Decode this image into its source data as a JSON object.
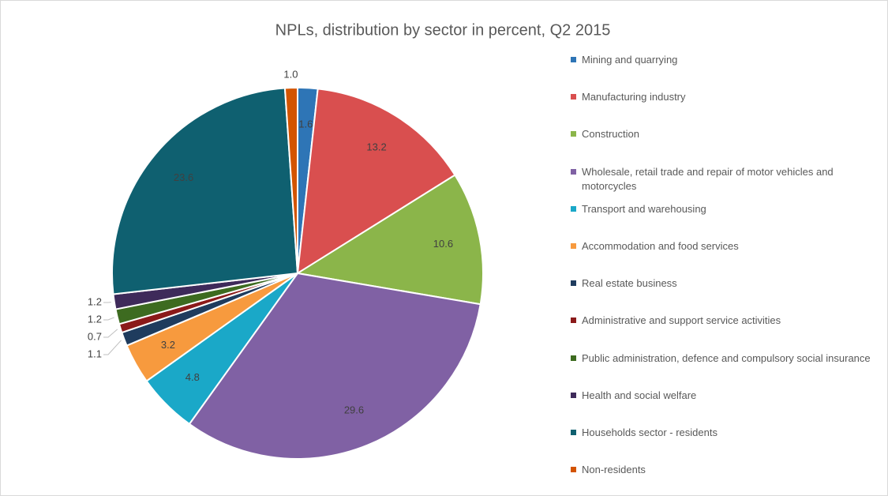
{
  "chart_data": {
    "type": "pie",
    "title": "NPLs, distribution by sector in percent, Q2 2015",
    "categories": [
      "Mining and quarrying",
      "Manufacturing industry",
      "Construction",
      "Wholesale, retail trade and repair of motor vehicles and motorcycles",
      "Transport and warehousing",
      "Accommodation and food services",
      "Real estate business",
      "Administrative and support service activities",
      "Public administration, defence and compulsory social insurance",
      "Health and social welfare",
      "Households sector - residents",
      "Non-residents"
    ],
    "values": [
      1.6,
      13.2,
      10.6,
      29.6,
      4.8,
      3.2,
      1.1,
      0.7,
      1.2,
      1.2,
      23.6,
      1.0
    ],
    "value_labels": [
      "1.6",
      "13.2",
      "10.6",
      "29.6",
      "4.8",
      "3.2",
      "1.1",
      "0.7",
      "1.2",
      "1.2",
      "23.6",
      "1.0"
    ],
    "colors": [
      "#2e75b6",
      "#d94f4f",
      "#8bb54a",
      "#8061a4",
      "#1aa8c8",
      "#f79a3e",
      "#1f3c5e",
      "#8b1a1a",
      "#3d6b20",
      "#3e2a5a",
      "#0f6070",
      "#d35400"
    ],
    "legend": "right"
  }
}
